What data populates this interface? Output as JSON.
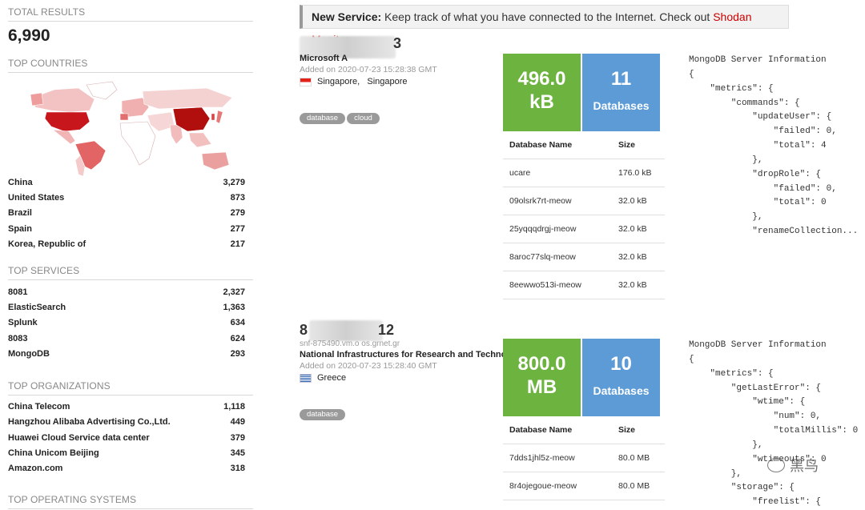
{
  "sidebar": {
    "total_results_heading": "TOTAL RESULTS",
    "total_results": "6,990",
    "top_countries_heading": "TOP COUNTRIES",
    "countries": [
      {
        "name": "China",
        "count": "3,279"
      },
      {
        "name": "United States",
        "count": "873"
      },
      {
        "name": "Brazil",
        "count": "279"
      },
      {
        "name": "Spain",
        "count": "277"
      },
      {
        "name": "Korea, Republic of",
        "count": "217"
      }
    ],
    "top_services_heading": "TOP SERVICES",
    "services": [
      {
        "name": "8081",
        "count": "2,327"
      },
      {
        "name": "ElasticSearch",
        "count": "1,363"
      },
      {
        "name": "Splunk",
        "count": "634"
      },
      {
        "name": "8083",
        "count": "624"
      },
      {
        "name": "MongoDB",
        "count": "293"
      }
    ],
    "top_orgs_heading": "TOP ORGANIZATIONS",
    "orgs": [
      {
        "name": "China Telecom",
        "count": "1,118"
      },
      {
        "name": "Hangzhou Alibaba Advertising Co.,Ltd.",
        "count": "449"
      },
      {
        "name": "Huawei Cloud Service data center",
        "count": "379"
      },
      {
        "name": "China Unicom Beijing",
        "count": "345"
      },
      {
        "name": "Amazon.com",
        "count": "318"
      }
    ],
    "top_os_heading": "TOP OPERATING SYSTEMS"
  },
  "banner": {
    "bold": "New Service:",
    "text": " Keep track of what you have connected to the Internet. Check out ",
    "link": "Shodan Monitor"
  },
  "results": [
    {
      "ip_suffix": "3",
      "org": "Microsoft A",
      "added": "Added on 2020-07-23 15:28:38 GMT",
      "location": "Singapore,   Singapore",
      "tags": [
        "database",
        "cloud"
      ],
      "size_value": "496.0",
      "size_unit": "kB",
      "db_count": "11",
      "db_label": "Databases",
      "table_headers": [
        "Database Name",
        "Size"
      ],
      "databases": [
        {
          "name": "ucare",
          "size": "176.0 kB"
        },
        {
          "name": "09olsrk7rt-meow",
          "size": "32.0 kB"
        },
        {
          "name": "25yqqqdrgj-meow",
          "size": "32.0 kB"
        },
        {
          "name": "8aroc77slq-meow",
          "size": "32.0 kB"
        },
        {
          "name": "8eewwo513i-meow",
          "size": "32.0 kB"
        }
      ],
      "json": "MongoDB Server Information\n{\n    \"metrics\": {\n        \"commands\": {\n            \"updateUser\": {\n                \"failed\": 0,\n                \"total\": 4\n            },\n            \"dropRole\": {\n                \"failed\": 0,\n                \"total\": 0\n            },\n            \"renameCollection..."
    },
    {
      "ip_prefix": "8",
      "ip_suffix": "12",
      "hostname": "snf-875490.vm.o     os.grnet.gr",
      "org": "National Infrastructures for Research and Technolo",
      "added": "Added on 2020-07-23 15:28:40 GMT",
      "location": "Greece",
      "tags": [
        "database"
      ],
      "size_value": "800.0",
      "size_unit": "MB",
      "db_count": "10",
      "db_label": "Databases",
      "table_headers": [
        "Database Name",
        "Size"
      ],
      "databases": [
        {
          "name": "7dds1jhl5z-meow",
          "size": "80.0 MB"
        },
        {
          "name": "8r4ojegoue-meow",
          "size": "80.0 MB"
        }
      ],
      "json": "MongoDB Server Information\n{\n    \"metrics\": {\n        \"getLastError\": {\n            \"wtime\": {\n                \"num\": 0,\n                \"totalMillis\": 0\n            },\n            \"wtimeouts\": 0\n        },\n        \"storage\": {\n            \"freelist\": {"
    }
  ],
  "watermark": "黑鸟"
}
